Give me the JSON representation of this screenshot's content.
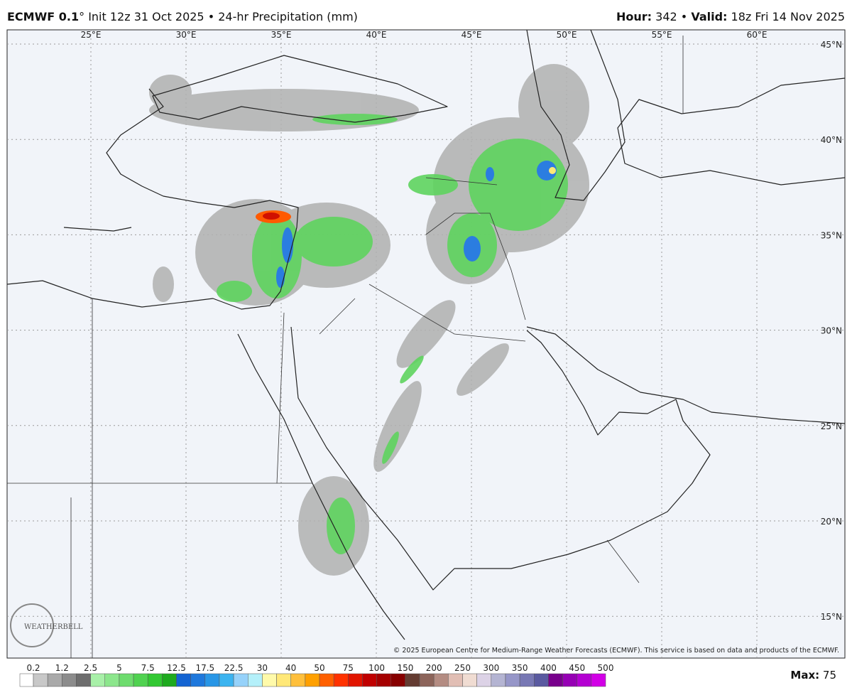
{
  "header": {
    "model": "ECMWF 0.1",
    "degree": "°",
    "description": "Init 12z 31 Oct 2025 • 24-hr Precipitation (mm)",
    "hour_label": "Hour:",
    "hour": 342,
    "separator": "•",
    "valid_label": "Valid:",
    "valid": "18z Fri 14 Nov 2025"
  },
  "map": {
    "longitudes": [
      "25°E",
      "30°E",
      "35°E",
      "40°E",
      "45°E",
      "50°E",
      "55°E",
      "60°E"
    ],
    "latitudes": [
      "45°N",
      "40°N",
      "35°N",
      "30°N",
      "25°N",
      "20°N",
      "15°N"
    ],
    "copyright": "© 2025 European Centre for Medium-Range Weather Forecasts (ECMWF). This service is based on data and products of the ECMWF.",
    "logo": "WEATHERBELL"
  },
  "legend": {
    "labels": [
      0.2,
      1.2,
      2.5,
      5,
      7.5,
      12.5,
      17.5,
      22.5,
      30,
      40,
      50,
      75,
      100,
      150,
      200,
      250,
      300,
      350,
      400,
      450,
      500
    ],
    "colors": [
      "#ffffff",
      "#c8c8c8",
      "#a9a9a9",
      "#8c8c8c",
      "#6e6e6e",
      "#a8f0a8",
      "#8ce68c",
      "#6edc6e",
      "#50d250",
      "#32c832",
      "#1eaa1e",
      "#1464d2",
      "#1e78dc",
      "#2896e6",
      "#3cb4f0",
      "#96d2fa",
      "#b4f0fa",
      "#fffaaa",
      "#ffe878",
      "#ffc03c",
      "#ffa000",
      "#ff6000",
      "#ff3200",
      "#e11400",
      "#c00000",
      "#a50000",
      "#870000",
      "#643c32",
      "#8c645a",
      "#b48c82",
      "#e1beb4",
      "#f0dcd2",
      "#dcd2e6",
      "#b4b4d2",
      "#9696c8",
      "#7878b4",
      "#5a5aa0",
      "#78008c",
      "#9600b4",
      "#b400d2",
      "#d200e6"
    ],
    "max_label": "Max:",
    "max": 75
  }
}
